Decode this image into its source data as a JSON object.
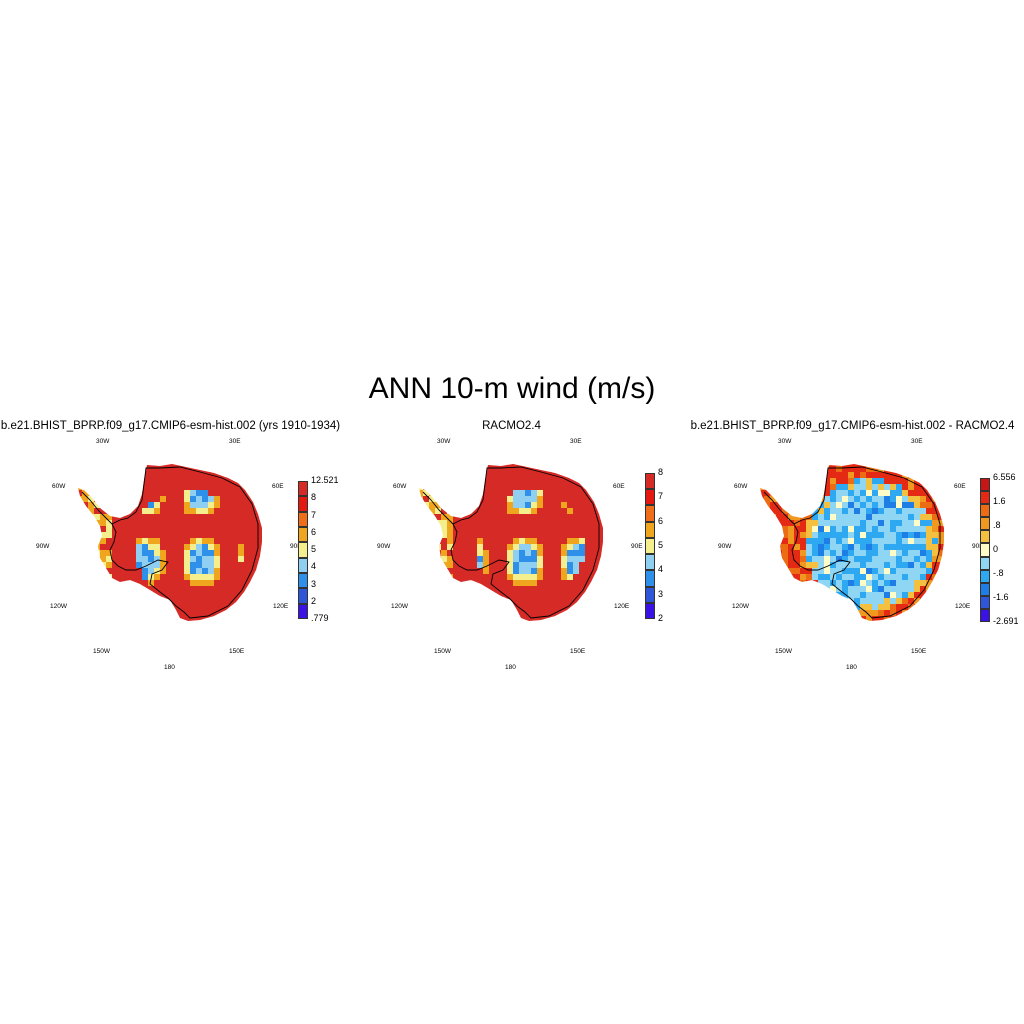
{
  "title": "ANN 10-m wind (m/s)",
  "lon_labels": [
    "30W",
    "30E",
    "60W",
    "60E",
    "90W",
    "90E",
    "120W",
    "120E",
    "150W",
    "150E",
    "180"
  ],
  "panels": [
    {
      "title": "b.e21.BHIST_BPRP.f09_g17.CMIP6-esm-hist.002 (yrs 1910-1934)",
      "colorbar": {
        "colors": [
          "#3a12e6",
          "#2f55d8",
          "#2e90e8",
          "#8fcff2",
          "#f4ee8c",
          "#f0a51e",
          "#f06e1a",
          "#e41a12",
          "#d52a26"
        ],
        "labels": [
          ".779",
          "2",
          "3",
          "4",
          "5",
          "6",
          "7",
          "8",
          "12.521"
        ]
      }
    },
    {
      "title": "RACMO2.4",
      "colorbar": {
        "colors": [
          "#3a12e6",
          "#2f55d8",
          "#2e90e8",
          "#8fcff2",
          "#f4ee8c",
          "#f0a51e",
          "#f06e1a",
          "#e41a12",
          "#d52a26"
        ],
        "labels": [
          "2",
          "3",
          "4",
          "5",
          "6",
          "7",
          "8"
        ]
      }
    },
    {
      "title": "b.e21.BHIST_BPRP.f09_g17.CMIP6-esm-hist.002 - RACMO2.4",
      "colorbar": {
        "colors": [
          "#3a12e6",
          "#2f55d8",
          "#1e7ee6",
          "#2ea8f0",
          "#8fd6f4",
          "#fffcc8",
          "#f4c040",
          "#f09820",
          "#ec6c14",
          "#e42a14",
          "#c81616"
        ],
        "labels": [
          "-2.691",
          "-1.6",
          "-.8",
          "0",
          ".8",
          "1.6",
          "6.556"
        ]
      }
    }
  ]
}
